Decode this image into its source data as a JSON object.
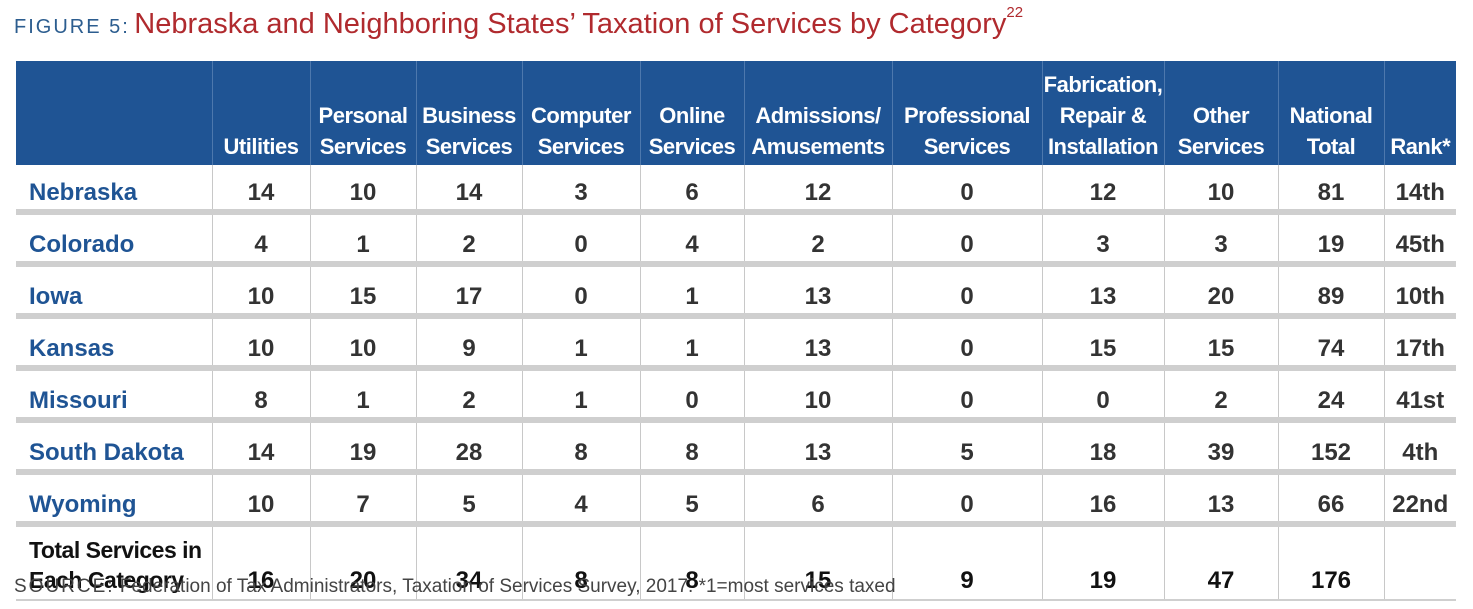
{
  "figure": {
    "label": "FIGURE 5:",
    "title": "Nebraska and Neighboring States’ Taxation of Services by Category",
    "footnote_ref": "22"
  },
  "chart_data": {
    "type": "table",
    "columns": [
      "",
      "Utilities",
      "Personal Services",
      "Business Services",
      "Computer Services",
      "Online Services",
      "Admissions/ Amusements",
      "Professional Services",
      "Fabrication, Repair & Installation",
      "Other Services",
      "National Total",
      "Rank*"
    ],
    "rows": [
      [
        "Nebraska",
        "14",
        "10",
        "14",
        "3",
        "6",
        "12",
        "0",
        "12",
        "10",
        "81",
        "14th"
      ],
      [
        "Colorado",
        "4",
        "1",
        "2",
        "0",
        "4",
        "2",
        "0",
        "3",
        "3",
        "19",
        "45th"
      ],
      [
        "Iowa",
        "10",
        "15",
        "17",
        "0",
        "1",
        "13",
        "0",
        "13",
        "20",
        "89",
        "10th"
      ],
      [
        "Kansas",
        "10",
        "10",
        "9",
        "1",
        "1",
        "13",
        "0",
        "15",
        "15",
        "74",
        "17th"
      ],
      [
        "Missouri",
        "8",
        "1",
        "2",
        "1",
        "0",
        "10",
        "0",
        "0",
        "2",
        "24",
        "41st"
      ],
      [
        "South Dakota",
        "14",
        "19",
        "28",
        "8",
        "8",
        "13",
        "5",
        "18",
        "39",
        "152",
        "4th"
      ],
      [
        "Wyoming",
        "10",
        "7",
        "5",
        "4",
        "5",
        "6",
        "0",
        "16",
        "13",
        "66",
        "22nd"
      ]
    ],
    "total_row": [
      "Total Services in Each Category",
      "16",
      "20",
      "34",
      "8",
      "8",
      "15",
      "9",
      "19",
      "47",
      "176",
      ""
    ]
  },
  "source": {
    "label": "SOURCE:",
    "text": "Federation of Tax Administrators, Taxation of Services Survey, 2017. *1=most services taxed"
  },
  "colors": {
    "header_bg": "#1f5494",
    "title_red": "#b02a2e",
    "state_blue": "#1f5494",
    "row_divider": "#cfcfcf"
  }
}
